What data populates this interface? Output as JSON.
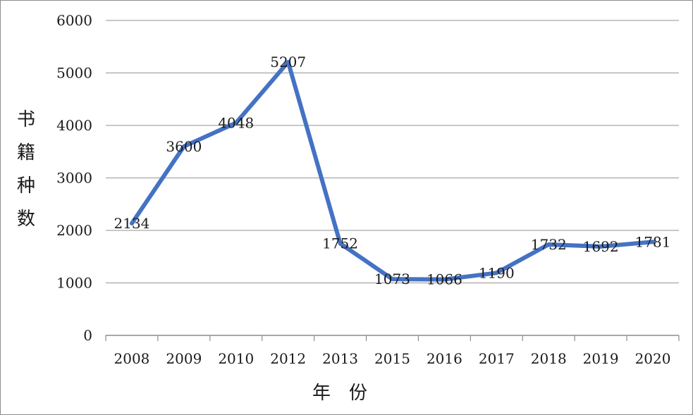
{
  "chart_data": {
    "type": "line",
    "categories": [
      "2008",
      "2009",
      "2010",
      "2012",
      "2013",
      "2015",
      "2016",
      "2017",
      "2018",
      "2019",
      "2020"
    ],
    "series": [
      {
        "values": [
          2134,
          3600,
          4048,
          5207,
          1752,
          1073,
          1066,
          1190,
          1732,
          1692,
          1781
        ]
      }
    ],
    "data_labels": [
      "2134",
      "3600",
      "4048",
      "5207",
      "1752",
      "1073",
      "1066",
      "1190",
      "1732",
      "1692",
      "1781"
    ],
    "ylabel_chars": [
      "书",
      "籍",
      "种",
      "数"
    ],
    "xlabel": "年　份",
    "ylim": [
      0,
      6000
    ],
    "yticks": [
      "0",
      "1000",
      "2000",
      "3000",
      "4000",
      "5000",
      "6000"
    ],
    "grid": true,
    "colors": {
      "line": "#4472c4",
      "grid": "#a6a6a6",
      "axis": "#8c8c8c"
    }
  }
}
